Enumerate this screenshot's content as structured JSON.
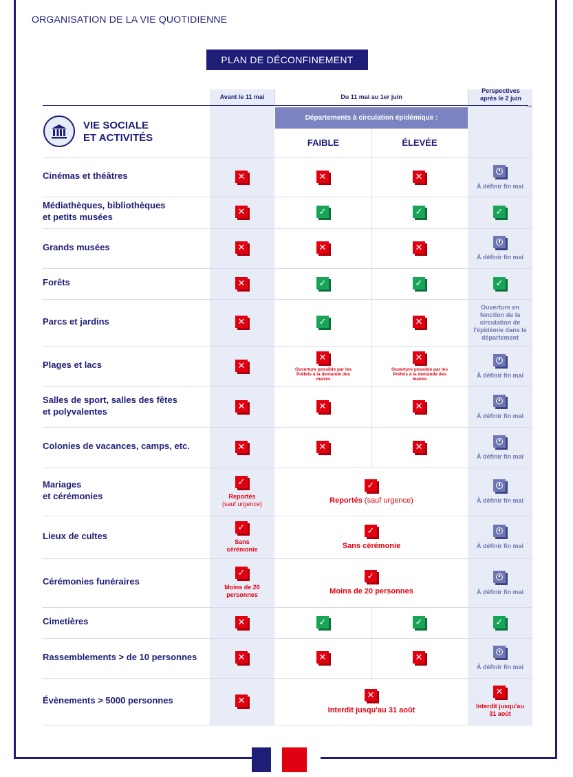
{
  "header": {
    "org_title": "ORGANISATION DE LA VIE QUOTIDIENNE",
    "plan_title": "PLAN DE DÉCONFINEMENT"
  },
  "phases": {
    "before": "Avant le 11 mai",
    "during": "Du 11 mai au 1er juin",
    "after": "Perspectives après le 2 juin"
  },
  "section": {
    "title_line1": "VIE SOCIALE",
    "title_line2": "ET ACTIVITÉS",
    "icon": "museum-icon"
  },
  "departments": {
    "header": "Départements à circulation épidémique :",
    "low": "FAIBLE",
    "high": "ÉLEVÉE"
  },
  "colors": {
    "navy": "#1e1e78",
    "red": "#e1000f",
    "green": "#18a558",
    "lavender": "#6e77b4",
    "shade": "#e8ecf7"
  },
  "rows": [
    {
      "label1": "Cinémas et théâtres",
      "label2": "",
      "before": "x",
      "low": "x",
      "high": "x",
      "after": "tbd",
      "after_note": "À définir fin mai"
    },
    {
      "label1": "Médiathèques, bibliothèques",
      "label2": "et petits musées",
      "before": "x",
      "low": "check",
      "high": "check",
      "after": "check",
      "after_note": ""
    },
    {
      "label1": "Grands musées",
      "label2": "",
      "before": "x",
      "low": "x",
      "high": "x",
      "after": "tbd",
      "after_note": "À définir fin mai"
    },
    {
      "label1": "Forêts",
      "label2": "",
      "before": "x",
      "low": "check",
      "high": "check",
      "after": "check",
      "after_note": ""
    },
    {
      "label1": "Parcs et jardins",
      "label2": "",
      "before": "x",
      "low": "check",
      "high": "x",
      "after": "text",
      "after_note": "Ouverture en fonction de la circulation de l'épidémie dans le département"
    },
    {
      "label1": "Plages et lacs",
      "label2": "",
      "before": "x",
      "low": "x",
      "high": "x",
      "low_note": "Ouverture possible par les Préfets à la demande des maires",
      "high_note": "Ouverture possible par les Préfets à la demande des maires",
      "after": "tbd",
      "after_note": "À définir fin mai"
    },
    {
      "label1": "Salles de sport, salles des fêtes",
      "label2": "et polyvalentes",
      "before": "x",
      "low": "x",
      "high": "x",
      "after": "tbd",
      "after_note": "À définir fin mai"
    },
    {
      "label1": "Colonies de vacances, camps, etc.",
      "label2": "",
      "before": "x",
      "low": "x",
      "high": "x",
      "after": "tbd",
      "after_note": "À définir fin mai"
    },
    {
      "label1": "Mariages",
      "label2": "et cérémonies",
      "before": "restricted",
      "before_note_bold": "Reportés",
      "before_note_light": "(sauf urgence)",
      "during": "restricted",
      "during_note_bold": "Reportés",
      "during_note_light": "(sauf urgence)",
      "after": "tbd",
      "after_note": "À définir fin mai"
    },
    {
      "label1": "Lieux de cultes",
      "label2": "",
      "before": "restricted",
      "before_note_bold": "Sans cérémonie",
      "during": "restricted",
      "during_note_bold": "Sans cérémonie",
      "after": "tbd",
      "after_note": "À définir fin mai"
    },
    {
      "label1": "Cérémonies funéraires",
      "label2": "",
      "before": "restricted",
      "before_note_bold": "Moins de 20 personnes",
      "during": "restricted",
      "during_note_bold": "Moins de 20 personnes",
      "after": "tbd",
      "after_note": "À définir fin mai"
    },
    {
      "label1": "Cimetières",
      "label2": "",
      "before": "x",
      "low": "check",
      "high": "check",
      "after": "check",
      "after_note": ""
    },
    {
      "label1": "Rassemblements > de 10 personnes",
      "label2": "",
      "before": "x",
      "low": "x",
      "high": "x",
      "after": "tbd",
      "after_note": "À définir fin mai"
    },
    {
      "label1": "Évènements > 5000 personnes",
      "label2": "",
      "before": "x",
      "during": "x",
      "during_note_bold": "Interdit jusqu'au 31 août",
      "after": "x",
      "after_note": "Interdit jusqu'au 31 août"
    }
  ]
}
